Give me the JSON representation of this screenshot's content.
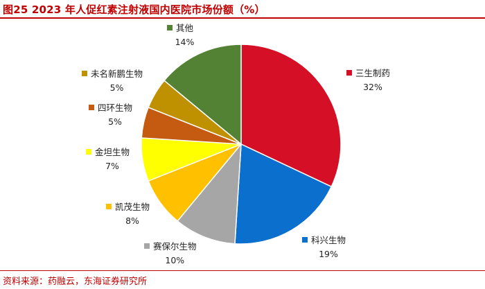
{
  "header": {
    "title": "图25  2023 年人促红素注射液国内医院市场份额（%）"
  },
  "footer": {
    "source": "资料来源：药融云，东海证券研究所"
  },
  "chart_data": {
    "type": "pie",
    "title": "",
    "unit": "%",
    "legend_placement": "labels-beside-slices",
    "start_angle_deg": 0,
    "direction": "clockwise",
    "slices": [
      {
        "name": "三生制药",
        "value": 32,
        "label": "32%",
        "color": "#d50f25"
      },
      {
        "name": "科兴生物",
        "value": 19,
        "label": "19%",
        "color": "#0b6fce"
      },
      {
        "name": "赛保尔生物",
        "value": 10,
        "label": "10%",
        "color": "#a6a6a6"
      },
      {
        "name": "凯茂生物",
        "value": 8,
        "label": "8%",
        "color": "#ffc000"
      },
      {
        "name": "金坦生物",
        "value": 7,
        "label": "7%",
        "color": "#ffff00"
      },
      {
        "name": "四环生物",
        "value": 5,
        "label": "5%",
        "color": "#c55a11"
      },
      {
        "name": "未名新鹏生物",
        "value": 5,
        "label": "5%",
        "color": "#bf9000"
      },
      {
        "name": "其他",
        "value": 14,
        "label": "14%",
        "color": "#548235"
      }
    ]
  }
}
